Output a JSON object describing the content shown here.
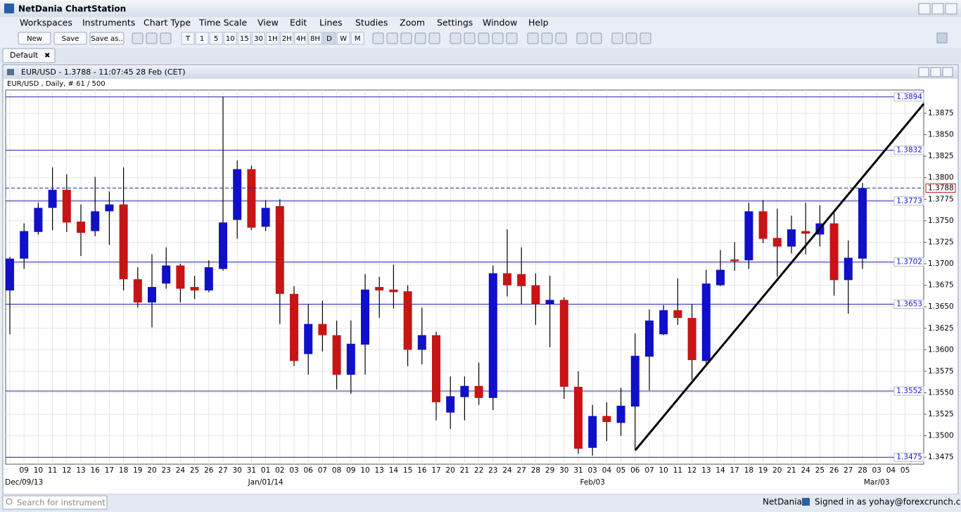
{
  "ui": {
    "app_title": "NetDania ChartStation",
    "menu": [
      "Workspaces",
      "Instruments",
      "Chart Type",
      "Time Scale",
      "View",
      "Edit",
      "Lines",
      "Studies",
      "Zoom",
      "Settings",
      "Window",
      "Help"
    ],
    "toolbar_buttons": [
      "New",
      "Save",
      "Save as.."
    ],
    "timeframes": [
      "T",
      "1",
      "5",
      "10",
      "15",
      "30",
      "1H",
      "2H",
      "4H",
      "8H",
      "D",
      "W",
      "M"
    ],
    "tab": "Default",
    "search_placeholder": "Search for instrument",
    "brand": "NetDania",
    "signed_in": "Signed in as yohay@forexcrunch.com"
  },
  "chart_data": {
    "type": "candlestick",
    "title": "EUR/USD - 1.3788 - 11:07:45  28 Feb (CET)",
    "subtitle": "EUR/USD , Daily, # 61 / 500",
    "categories": [
      null,
      "09",
      "10",
      "11",
      "12",
      "13",
      "16",
      "17",
      "18",
      "19",
      "20",
      "23",
      "24",
      "25",
      "26",
      "27",
      "30",
      "31",
      "01",
      "02",
      "03",
      "06",
      "07",
      "08",
      "09",
      "10",
      "13",
      "14",
      "15",
      "16",
      "17",
      "20",
      "21",
      "22",
      "23",
      "24",
      "27",
      "28",
      "29",
      "30",
      "31",
      "03",
      "04",
      "05",
      "06",
      "07",
      "10",
      "11",
      "12",
      "13",
      "14",
      "17",
      "18",
      "19",
      "20",
      "21",
      "24",
      "25",
      "26",
      "27",
      "28",
      "03",
      "04",
      "05"
    ],
    "period_labels": [
      null,
      "Dec/09/13",
      null,
      null,
      null,
      null,
      null,
      null,
      null,
      null,
      null,
      null,
      null,
      null,
      null,
      null,
      null,
      null,
      "Jan/01/14",
      null,
      null,
      null,
      null,
      null,
      null,
      null,
      null,
      null,
      null,
      null,
      null,
      null,
      null,
      null,
      null,
      null,
      null,
      null,
      null,
      null,
      null,
      "Feb/03",
      null,
      null,
      null,
      null,
      null,
      null,
      null,
      null,
      null,
      null,
      null,
      null,
      null,
      null,
      null,
      null,
      null,
      null,
      null,
      "Mar/03",
      null,
      null
    ],
    "open": [
      1.3669,
      1.3706,
      1.3737,
      1.3765,
      1.3786,
      1.3749,
      1.3738,
      1.3761,
      1.3769,
      1.3682,
      1.3655,
      1.3677,
      1.3698,
      1.3673,
      1.3669,
      1.3694,
      1.3751,
      1.381,
      1.3743,
      1.3767,
      1.3665,
      1.3595,
      1.363,
      1.3617,
      1.3571,
      1.3606,
      1.3673,
      1.367,
      1.3668,
      1.36,
      1.3617,
      1.3527,
      1.3545,
      1.3558,
      1.3544,
      1.3689,
      1.3688,
      1.3675,
      1.3653,
      1.3658,
      1.3557,
      1.3486,
      1.3523,
      1.3515,
      1.3534,
      1.3592,
      1.3618,
      1.3646,
      1.3637,
      1.3587,
      1.3675,
      1.3705,
      1.3704,
      1.3761,
      1.373,
      1.372,
      1.3738,
      1.3734,
      1.3747,
      1.3681,
      1.3706,
      null,
      null,
      null
    ],
    "high": [
      1.3708,
      1.3747,
      1.3771,
      1.3812,
      1.3804,
      1.3769,
      1.3801,
      1.3784,
      1.3812,
      1.3696,
      1.3711,
      1.3719,
      1.37,
      1.3686,
      1.3704,
      1.3894,
      1.382,
      1.3814,
      1.3774,
      1.3775,
      1.3674,
      1.3653,
      1.3657,
      1.3634,
      1.3634,
      1.3688,
      1.3685,
      1.3699,
      1.3675,
      1.3649,
      1.3621,
      1.3569,
      1.3569,
      1.3585,
      1.3698,
      1.374,
      1.3719,
      1.3689,
      1.3686,
      1.3661,
      1.3575,
      1.3536,
      1.3539,
      1.3556,
      1.3619,
      1.3647,
      1.3652,
      1.3683,
      1.3653,
      1.3693,
      1.3716,
      1.3725,
      1.3771,
      1.3774,
      1.3764,
      1.3756,
      1.3771,
      1.3768,
      1.3761,
      1.3727,
      1.3794,
      null,
      null,
      null
    ],
    "low": [
      1.3618,
      1.3694,
      1.3734,
      1.3739,
      1.3737,
      1.3709,
      1.3732,
      1.3722,
      1.3669,
      1.3649,
      1.3626,
      1.3671,
      1.3655,
      1.3659,
      1.3667,
      1.3692,
      1.3729,
      1.3739,
      1.3738,
      1.363,
      1.3581,
      1.3571,
      1.3598,
      1.3554,
      1.3549,
      1.3571,
      1.3637,
      1.3648,
      1.3581,
      1.3583,
      1.3518,
      1.3508,
      1.3518,
      1.3536,
      1.353,
      1.3662,
      1.3653,
      1.3629,
      1.3603,
      1.3543,
      1.3479,
      1.3477,
      1.3494,
      1.35,
      1.3483,
      1.3553,
      1.3617,
      1.3629,
      1.3565,
      1.3583,
      1.3674,
      1.3692,
      1.3694,
      1.3724,
      1.3685,
      1.3712,
      1.3711,
      1.372,
      1.3663,
      1.3642,
      1.3694,
      null,
      null,
      null
    ],
    "close": [
      1.3706,
      1.3738,
      1.3765,
      1.3786,
      1.3748,
      1.3736,
      1.3761,
      1.3769,
      1.3682,
      1.3655,
      1.3673,
      1.3698,
      1.3671,
      1.3669,
      1.3696,
      1.3748,
      1.381,
      1.3742,
      1.3765,
      1.3665,
      1.3587,
      1.363,
      1.3617,
      1.3571,
      1.3607,
      1.367,
      1.3669,
      1.3667,
      1.36,
      1.3617,
      1.3539,
      1.3546,
      1.3558,
      1.3544,
      1.3689,
      1.3675,
      1.3674,
      1.3653,
      1.3658,
      1.3557,
      1.3485,
      1.3523,
      1.3516,
      1.3535,
      1.3593,
      1.3634,
      1.3646,
      1.3637,
      1.3588,
      1.3677,
      1.3693,
      1.3703,
      1.3761,
      1.3729,
      1.372,
      1.374,
      1.3735,
      1.3747,
      1.3681,
      1.3707,
      1.3788,
      null,
      null,
      null
    ],
    "up_color": "#1010c8",
    "down_color": "#c81414",
    "levels": [
      1.3894,
      1.3832,
      1.3773,
      1.3702,
      1.3653,
      1.3552,
      1.3475
    ],
    "trendline": {
      "start": 1.3483,
      "end": 1.3886
    },
    "ylim": [
      1.3467,
      1.3902
    ],
    "yticks": [
      1.3475,
      {
        "value": 1.35,
        "label": "1.3500"
      },
      1.3525,
      {
        "value": 1.355,
        "label": "1.3550"
      },
      1.3575,
      {
        "value": 1.36,
        "label": "1.3600"
      },
      1.3625,
      {
        "value": 1.365,
        "label": "1.3650"
      },
      1.3675,
      {
        "value": 1.37,
        "label": "1.3700"
      },
      1.3725,
      {
        "value": 1.375,
        "label": "1.3750"
      },
      1.3775,
      {
        "value": 1.38,
        "label": "1.3800"
      },
      1.3825,
      {
        "value": 1.385,
        "label": "1.3850"
      },
      1.3875
    ],
    "grid": true
  }
}
